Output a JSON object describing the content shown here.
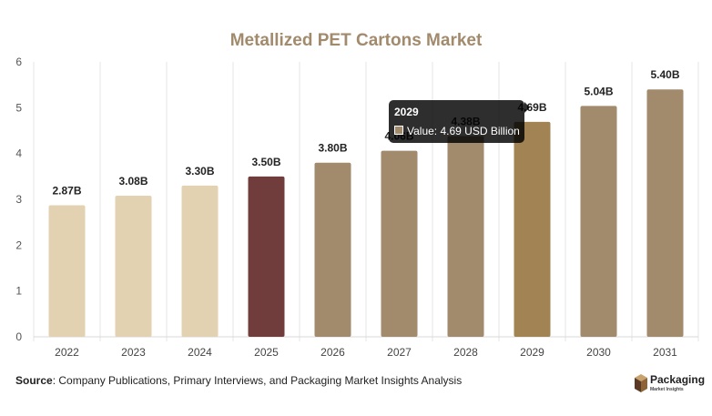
{
  "chart_data": {
    "type": "bar",
    "title": "Metallized PET Cartons Market",
    "categories": [
      "2022",
      "2023",
      "2024",
      "2025",
      "2026",
      "2027",
      "2028",
      "2029",
      "2030",
      "2031"
    ],
    "values": [
      2.87,
      3.08,
      3.3,
      3.5,
      3.8,
      4.06,
      4.38,
      4.69,
      5.04,
      5.4
    ],
    "data_labels": [
      "2.87B",
      "3.08B",
      "3.30B",
      "3.50B",
      "3.80B",
      "4.06B",
      "4.38B",
      "4.69B",
      "5.04B",
      "5.40B"
    ],
    "ylim": [
      0,
      6
    ],
    "y_ticks": [
      0,
      1,
      2,
      3,
      4,
      5,
      6
    ],
    "grid": "vertical lines only",
    "legend": "none",
    "colors": {
      "light": "#e3d2b2",
      "highlight": "#703d3c",
      "dark": "#a28a6d",
      "hover": "#a18354",
      "title": "#a28a6d"
    },
    "highlighted_index": 3,
    "hovered_index": 7
  },
  "tooltip": {
    "title": "2029",
    "body": "Value: 4.69 USD Billion"
  },
  "source": {
    "label": "Source",
    "text": ": Company Publications, Primary Interviews, and Packaging Market Insights Analysis"
  },
  "logo": {
    "name": "Packaging",
    "sub": "Market Insights",
    "icon": "box-icon"
  }
}
